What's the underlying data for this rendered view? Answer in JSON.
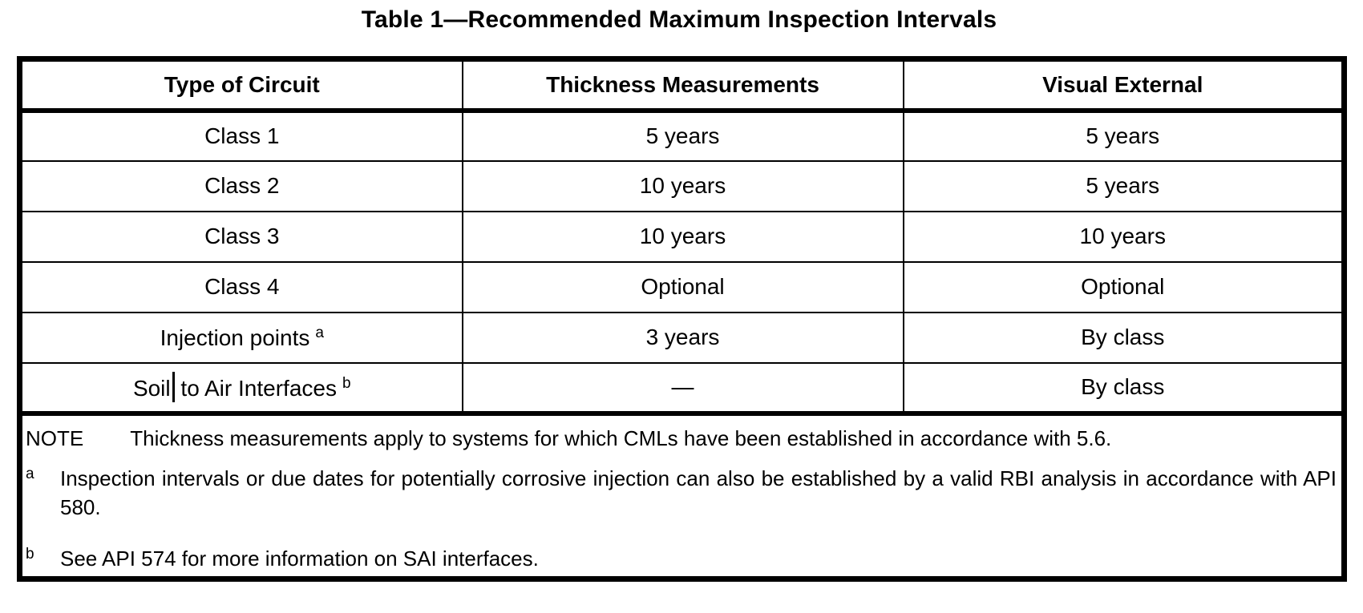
{
  "document": {
    "title": "Table 1—Recommended Maximum Inspection Intervals"
  },
  "table": {
    "headers": [
      "Type of Circuit",
      "Thickness Measurements",
      "Visual External"
    ],
    "rows": [
      {
        "circuit": "Class 1",
        "thickness": "5 years",
        "visual": "5 years"
      },
      {
        "circuit": "Class 2",
        "thickness": "10 years",
        "visual": "5 years"
      },
      {
        "circuit": "Class 3",
        "thickness": "10 years",
        "visual": "10 years"
      },
      {
        "circuit": "Class 4",
        "thickness": "Optional",
        "visual": "Optional"
      },
      {
        "circuit": "Injection points",
        "circuit_note": "a",
        "thickness": "3 years",
        "visual": "By class"
      },
      {
        "circuit_before_cursor": "Soil",
        "circuit_after_cursor": " to Air Interfaces",
        "circuit_note": "b",
        "thickness": "—",
        "visual": "By class"
      }
    ]
  },
  "notes": {
    "note_label": "NOTE",
    "note_text": "Thickness measurements apply to systems for which CMLs have been established in accordance with 5.6.",
    "footnotes": [
      {
        "marker": "a",
        "text": "Inspection intervals or due dates for potentially corrosive injection can also be established by a valid RBI analysis in accordance with API 580."
      },
      {
        "marker": "b",
        "text": "See API 574 for more information on SAI interfaces."
      }
    ]
  }
}
